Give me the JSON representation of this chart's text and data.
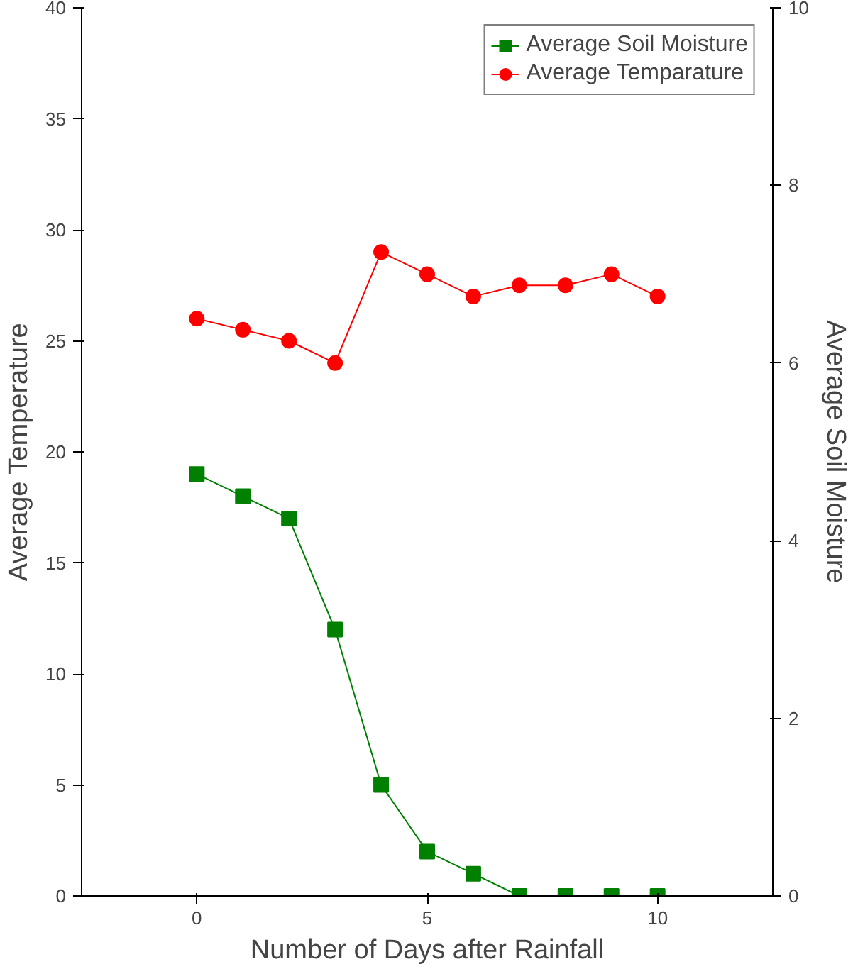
{
  "chart_data": {
    "type": "line",
    "xlabel": "Number of Days after Rainfall",
    "ylabel": "Average Temperature",
    "y2label": "Average Soil Moisture",
    "x": [
      0,
      1,
      2,
      3,
      4,
      5,
      6,
      7,
      8,
      9,
      10
    ],
    "xlim": [
      -2.5,
      12.5
    ],
    "xticks": [
      0,
      5,
      10
    ],
    "ylim": [
      0,
      40
    ],
    "yticks": [
      0,
      5,
      10,
      15,
      20,
      25,
      30,
      35,
      40
    ],
    "y2lim": [
      0,
      10
    ],
    "y2ticks": [
      0,
      2,
      4,
      6,
      8,
      10
    ],
    "grid": false,
    "legend": "top right",
    "series": [
      {
        "name": "Average Soil Moisture",
        "color": "#008000",
        "axis": "y2",
        "marker": "square",
        "values": [
          4.75,
          4.5,
          4.25,
          3,
          1.25,
          0.5,
          0.25,
          0,
          0,
          0,
          0
        ]
      },
      {
        "name": "Average Temparature",
        "color": "#ff0000",
        "marker": "circle",
        "values": [
          26,
          25.5,
          25,
          24,
          29,
          28,
          27,
          27.5,
          27.5,
          28,
          27
        ]
      }
    ]
  }
}
